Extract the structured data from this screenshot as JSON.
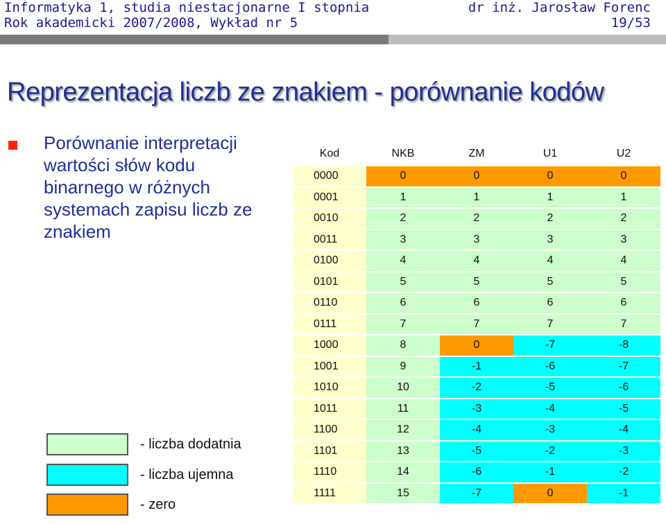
{
  "header": {
    "course": "Informatyka 1, studia niestacjonarne I stopnia",
    "lecture": "Rok akademicki 2007/2008, Wykład nr 5",
    "author": "dr inż. Jarosław Forenc",
    "page": "19/53"
  },
  "slide": {
    "title": "Reprezentacja liczb ze znakiem - porównanie kodów",
    "bullet": "Porównanie interpretacji wartości słów kodu binarnego w różnych systemach zapisu liczb ze znakiem"
  },
  "legend": [
    {
      "color": "#ccffcc",
      "label": "- liczba dodatnia"
    },
    {
      "color": "#00ffff",
      "label": "- liczba ujemna"
    },
    {
      "color": "#ff9900",
      "label": "- zero"
    }
  ],
  "colors": {
    "positive": "#ccffcc",
    "negative": "#00ffff",
    "zero": "#ff9900",
    "code": "#ffffcc",
    "title": "#1f2f9a"
  },
  "table": {
    "headers": [
      "Kod",
      "NKB",
      "ZM",
      "U1",
      "U2"
    ],
    "rows": [
      [
        "0000",
        "0",
        "0",
        "0",
        "0"
      ],
      [
        "0001",
        "1",
        "1",
        "1",
        "1"
      ],
      [
        "0010",
        "2",
        "2",
        "2",
        "2"
      ],
      [
        "0011",
        "3",
        "3",
        "3",
        "3"
      ],
      [
        "0100",
        "4",
        "4",
        "4",
        "4"
      ],
      [
        "0101",
        "5",
        "5",
        "5",
        "5"
      ],
      [
        "0110",
        "6",
        "6",
        "6",
        "6"
      ],
      [
        "0111",
        "7",
        "7",
        "7",
        "7"
      ],
      [
        "1000",
        "8",
        "0",
        "-7",
        "-8"
      ],
      [
        "1001",
        "9",
        "-1",
        "-6",
        "-7"
      ],
      [
        "1010",
        "10",
        "-2",
        "-5",
        "-6"
      ],
      [
        "1011",
        "11",
        "-3",
        "-4",
        "-5"
      ],
      [
        "1100",
        "12",
        "-4",
        "-3",
        "-4"
      ],
      [
        "1101",
        "13",
        "-5",
        "-2",
        "-3"
      ],
      [
        "1110",
        "14",
        "-6",
        "-1",
        "-2"
      ],
      [
        "1111",
        "15",
        "-7",
        "0",
        "-1"
      ]
    ]
  }
}
